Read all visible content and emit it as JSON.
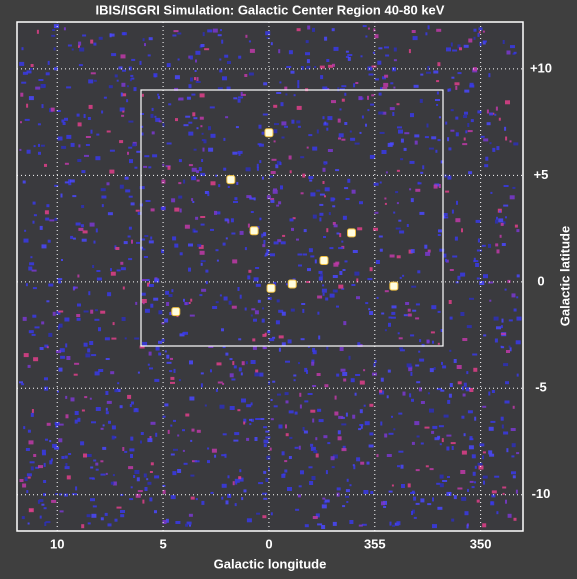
{
  "chart_data": {
    "type": "scatter",
    "title": "IBIS/ISGRI Simulation: Galactic Center Region 40-80 keV",
    "x_label": "Galactic longitude",
    "y_label": "Galactic latitude",
    "xlim": [
      11.9,
      -12
    ],
    "ylim": [
      -11.7,
      12.2
    ],
    "xticks": [
      10,
      5,
      0,
      {
        "value": -5,
        "label": "355"
      },
      {
        "value": -10,
        "label": "350"
      }
    ],
    "yticks": [
      {
        "value": 10,
        "label": "+10"
      },
      {
        "value": 5,
        "label": "+5"
      },
      0,
      -5,
      -10
    ],
    "grid": true,
    "series": [
      {
        "color": "#fffde0",
        "x": [
          0.0,
          1.8,
          0.7,
          -3.9,
          -2.6,
          -1.1,
          -0.1,
          -5.9,
          4.4
        ],
        "values": [
          7.0,
          4.8,
          2.4,
          2.3,
          1.0,
          -0.1,
          -0.3,
          -0.2,
          -1.4
        ]
      }
    ]
  }
}
